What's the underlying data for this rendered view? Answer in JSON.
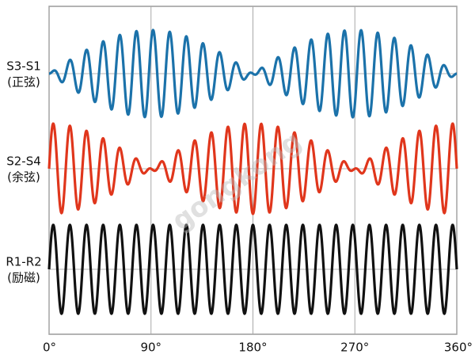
{
  "signals": [
    {
      "name": "S3-S1",
      "note": "(正弦)",
      "color": "#1b72aa"
    },
    {
      "name": "S2-S4",
      "note": "(余弦)",
      "color": "#e0361c"
    },
    {
      "name": "R1-R2",
      "note": "(励磁)",
      "color": "#111111"
    }
  ],
  "axis": {
    "xlim": [
      0,
      360
    ],
    "xticks": [
      {
        "value": 0,
        "label": "0°"
      },
      {
        "value": 90,
        "label": "90°"
      },
      {
        "value": 180,
        "label": "180°"
      },
      {
        "value": 270,
        "label": "270°"
      },
      {
        "value": 360,
        "label": "360°"
      }
    ]
  },
  "watermark": "gongkong"
}
